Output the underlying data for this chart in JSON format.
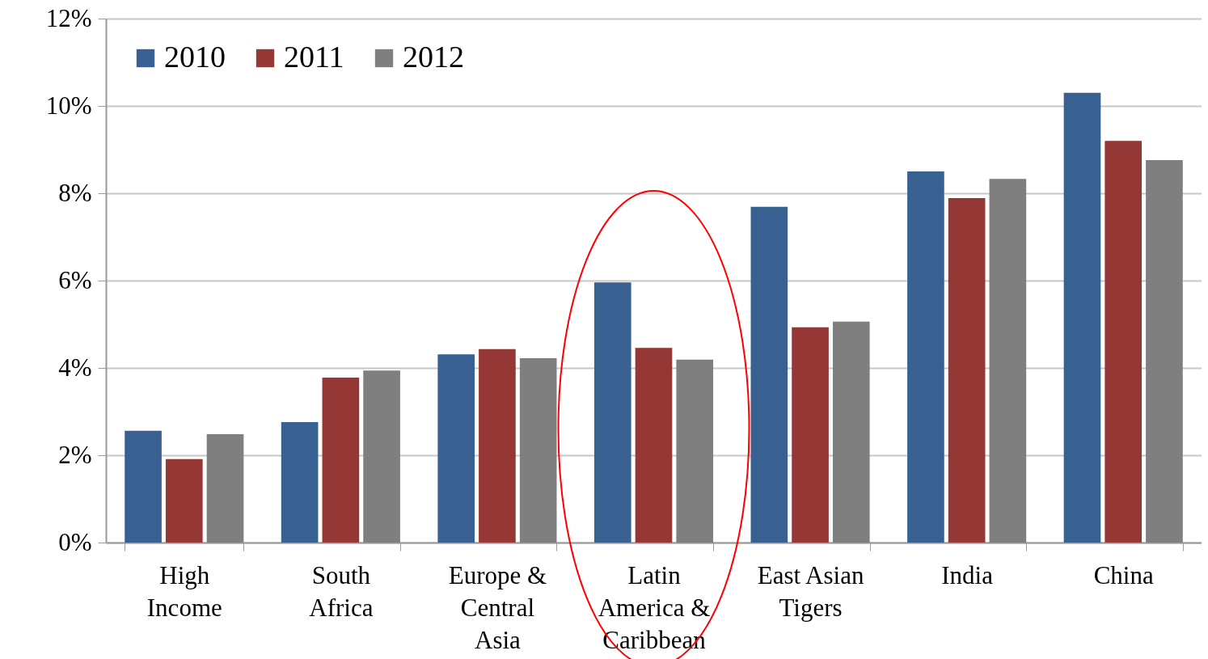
{
  "chart_data": {
    "type": "bar",
    "categories": [
      "High Income",
      "South Africa",
      "Europe & Central Asia",
      "Latin America & Caribbean",
      "East Asian Tigers",
      "India",
      "China"
    ],
    "series": [
      {
        "name": "2010",
        "color": "#386192",
        "values": [
          2.56,
          2.76,
          4.31,
          5.96,
          7.69,
          8.5,
          10.3
        ]
      },
      {
        "name": "2011",
        "color": "#953735",
        "values": [
          1.91,
          3.78,
          4.43,
          4.46,
          4.93,
          7.89,
          9.2
        ]
      },
      {
        "name": "2012",
        "color": "#7f7f7f",
        "values": [
          2.48,
          3.94,
          4.22,
          4.19,
          5.06,
          8.33,
          8.76
        ]
      }
    ],
    "ylim": [
      0,
      12
    ],
    "yticks": [
      {
        "value": 0,
        "label": "0%"
      },
      {
        "value": 2,
        "label": "2%"
      },
      {
        "value": 4,
        "label": "4%"
      },
      {
        "value": 6,
        "label": "6%"
      },
      {
        "value": 8,
        "label": "8%"
      },
      {
        "value": 10,
        "label": "10%"
      },
      {
        "value": 12,
        "label": "12%"
      }
    ],
    "grid": "y",
    "legend": "top left"
  }
}
